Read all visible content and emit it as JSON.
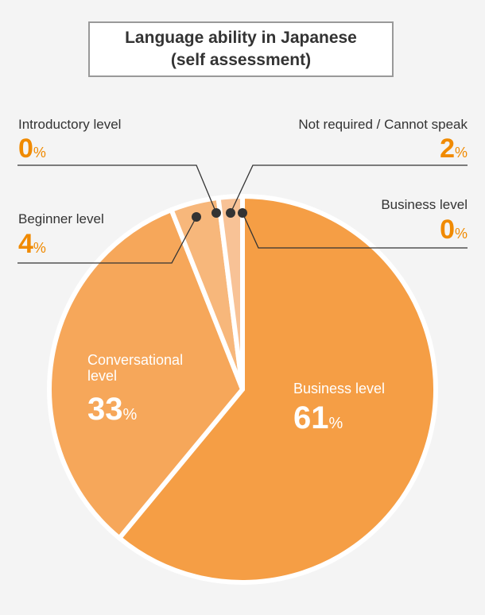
{
  "chart_data": {
    "type": "pie",
    "title_lines": [
      "Language ability in Japanese",
      "(self assessment)"
    ],
    "categories": [
      "Business level",
      "Conversational level",
      "Beginner level",
      "Introductory level",
      "Not required / Cannot speak",
      "Business level"
    ],
    "values": [
      61,
      33,
      4,
      0,
      2,
      0
    ],
    "unit": "%",
    "colors": [
      "#f59e45",
      "#f6a75a",
      "#f7b77b",
      "#f8c296",
      "#f8c296",
      "#f59e45"
    ]
  }
}
